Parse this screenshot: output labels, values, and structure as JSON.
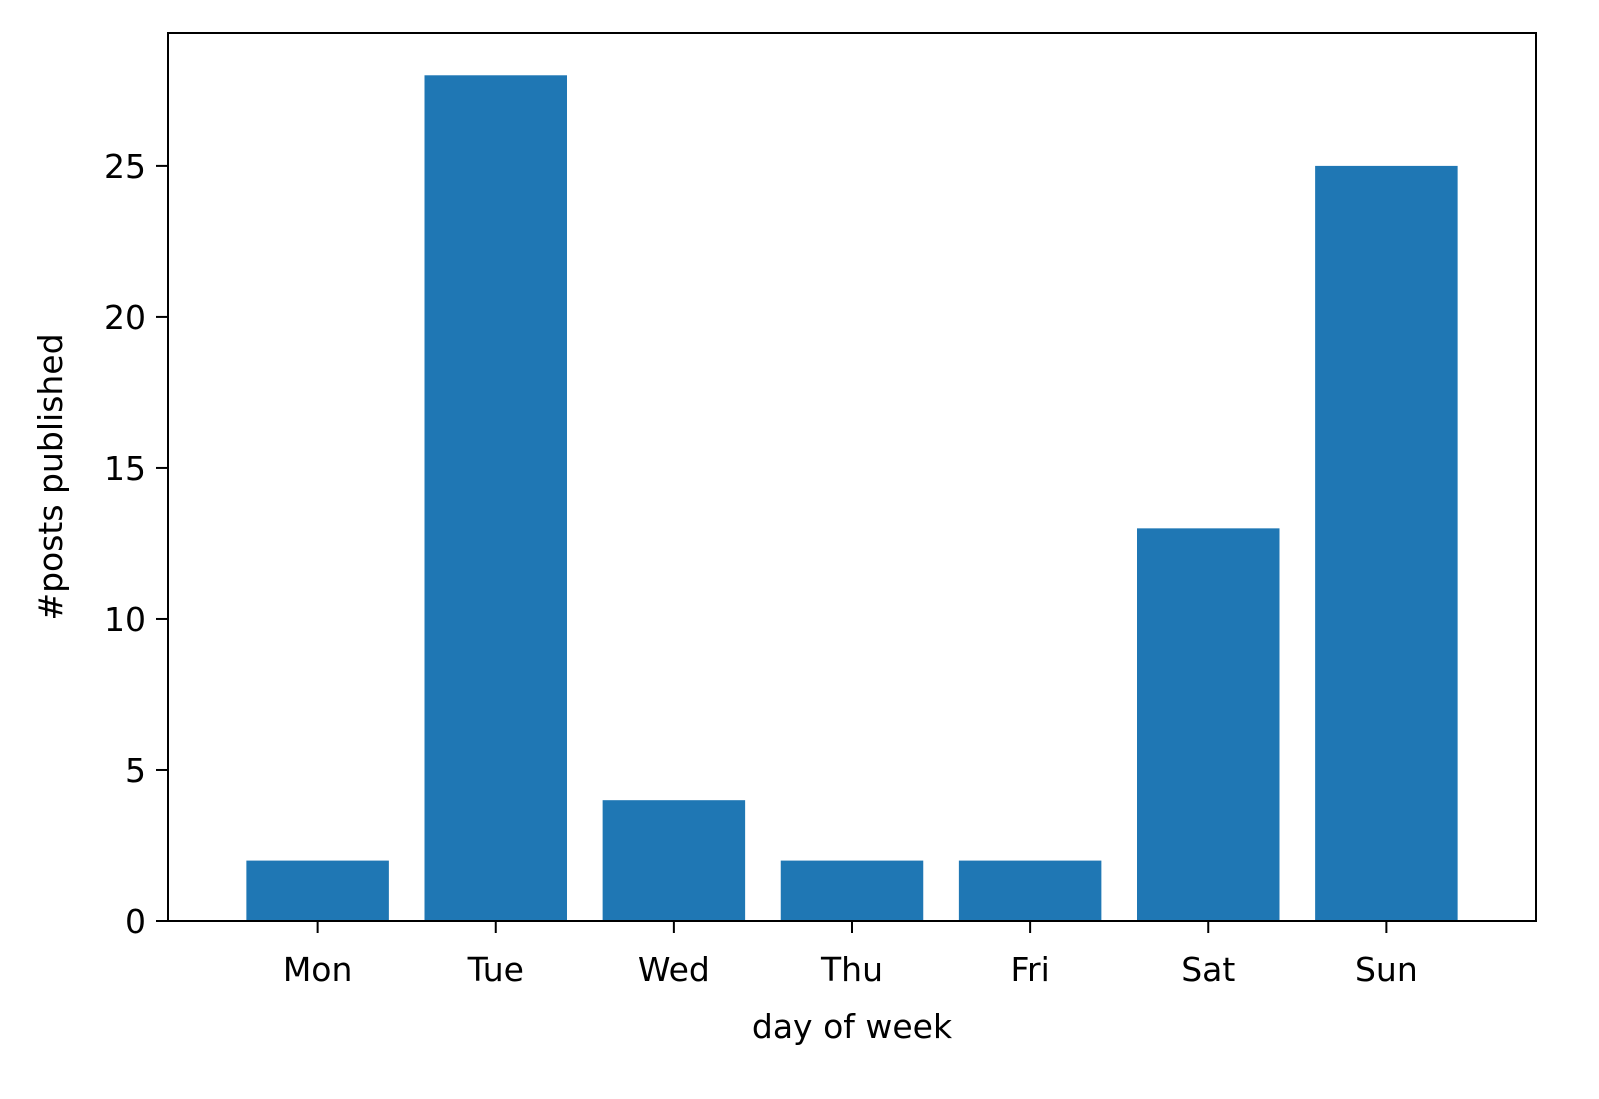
{
  "chart_data": {
    "type": "bar",
    "title": "",
    "xlabel": "day of week",
    "ylabel": "#posts published",
    "categories": [
      "Mon",
      "Tue",
      "Wed",
      "Thu",
      "Fri",
      "Sat",
      "Sun"
    ],
    "values": [
      2,
      28,
      4,
      2,
      2,
      13,
      25
    ],
    "ylim": [
      0,
      29.4
    ],
    "yticks": [
      0,
      5,
      10,
      15,
      20,
      25
    ],
    "grid": false,
    "legend": "none",
    "bar_color": "#1f77b4",
    "axis_color": "#000000"
  }
}
